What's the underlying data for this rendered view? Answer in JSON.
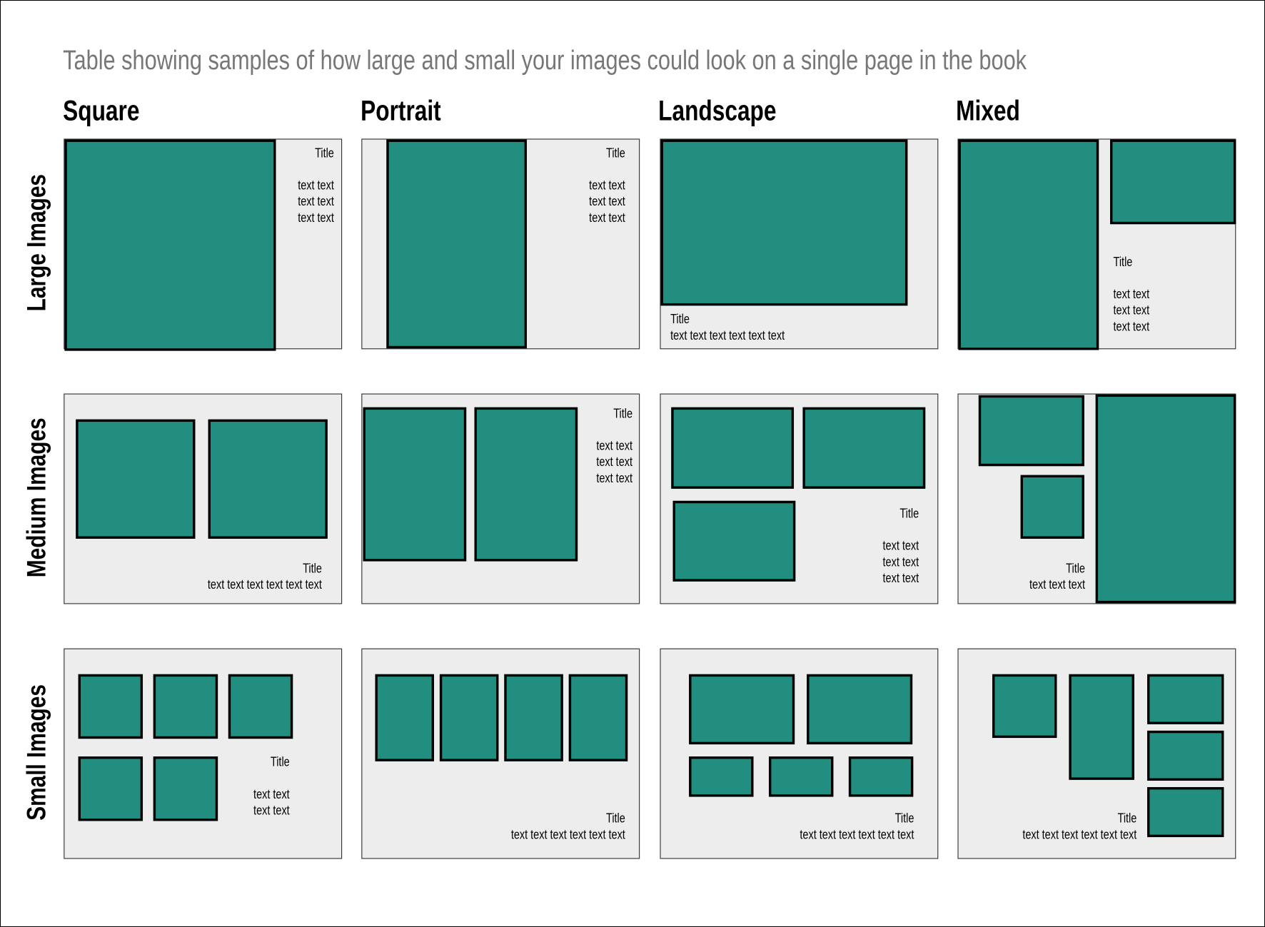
{
  "title": "Table showing samples of how large and small your images could look on a single page in the book",
  "columns": [
    "Square",
    "Portrait",
    "Landscape",
    "Mixed"
  ],
  "rows": [
    "Large Images",
    "Medium Images",
    "Small Images"
  ],
  "colors": {
    "image_fill": "#218e80",
    "panel_bg": "#ededed",
    "title_gray": "#777777"
  },
  "panels": [
    {
      "title": "Title",
      "lines": [
        "text text",
        "text text",
        "text text"
      ]
    },
    {
      "title": "Title",
      "lines": [
        "text text",
        "text text",
        "text text"
      ]
    },
    {
      "title": "Title",
      "lines": [
        "text text text text text text"
      ]
    },
    {
      "title": "Title",
      "lines": [
        "text text",
        "text text",
        "text text"
      ]
    },
    {
      "title": "Title",
      "lines": [
        "text text text text text text"
      ]
    },
    {
      "title": "Title",
      "lines": [
        "text text",
        "text text",
        "text text"
      ]
    },
    {
      "title": "Title",
      "lines": [
        "text text",
        "text text",
        "text text"
      ]
    },
    {
      "title": "Title",
      "lines": [
        "text text text"
      ]
    },
    {
      "title": "Title",
      "lines": [
        "text text",
        "text text"
      ]
    },
    {
      "title": "Title",
      "lines": [
        "text text text text text text"
      ]
    },
    {
      "title": "Title",
      "lines": [
        "text text text text text text"
      ]
    },
    {
      "title": "Title",
      "lines": [
        "text text text text text text"
      ]
    }
  ]
}
